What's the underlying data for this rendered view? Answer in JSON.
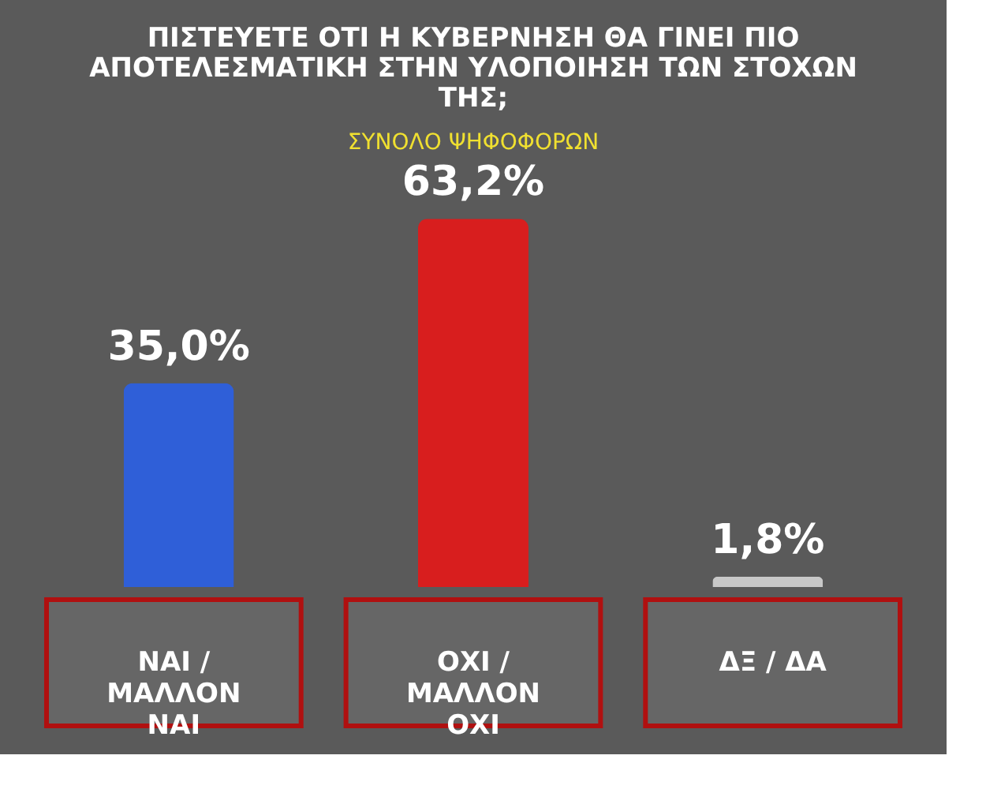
{
  "chart_data": {
    "type": "bar",
    "title": "ΠΙΣΤΕΥΕΤΕ ΟΤΙ Η ΚΥΒΕΡΝΗΣΗ ΘΑ ΓΙΝΕΙ ΠΙΟ ΑΠΟΤΕΛΕΣΜΑΤΙΚΗ ΣΤΗΝ ΥΛΟΠΟΙΗΣΗ ΤΩΝ ΣΤΟΧΩΝ ΤΗΣ;",
    "subtitle": "ΣΥΝΟΛΟ ΨΗΦΟΦΟΡΩΝ",
    "categories": [
      "ΝΑΙ / ΜΑΛΛΟΝ ΝΑΙ",
      "ΟΧΙ / ΜΑΛΛΟΝ ΟΧΙ",
      "ΔΞ / ΔΑ"
    ],
    "values": [
      35.0,
      63.2,
      1.8
    ],
    "colors": [
      "#2f5fd8",
      "#d81e1e",
      "#c8c8c8"
    ],
    "value_labels": [
      "35,0%",
      "63,2%",
      "1,8%"
    ]
  }
}
